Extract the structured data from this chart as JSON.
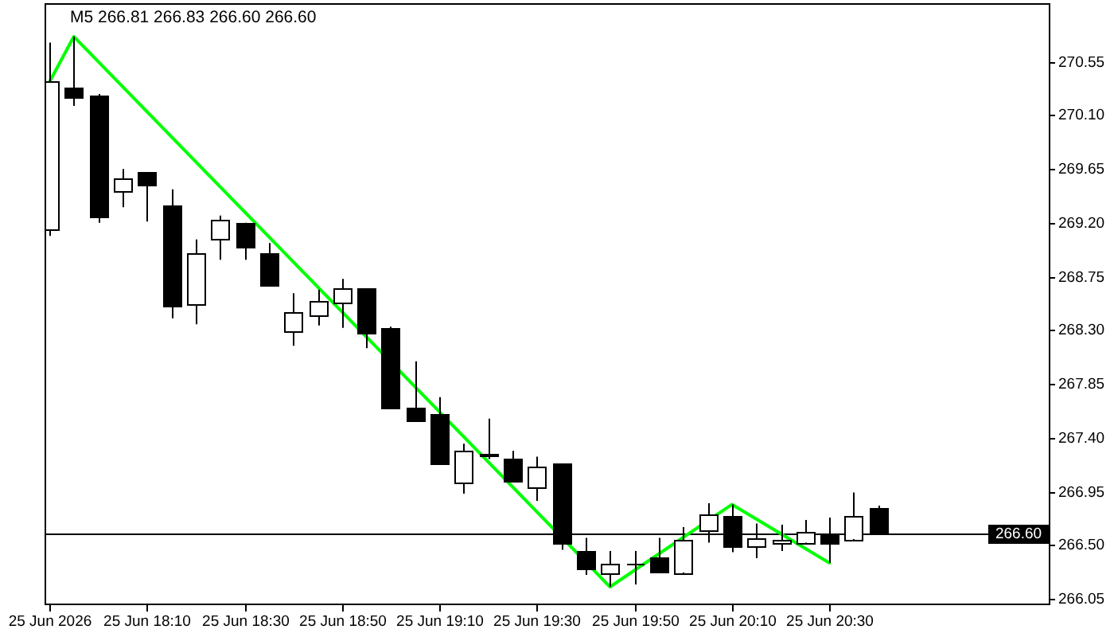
{
  "chart_data": {
    "type": "candlestick",
    "title": "M5 266.81 266.83 266.60 266.60",
    "x": [
      "2026-06-25T17:50",
      "2026-06-25T17:55",
      "2026-06-25T18:00",
      "2026-06-25T18:05",
      "2026-06-25T18:10",
      "2026-06-25T18:15",
      "2026-06-25T18:20",
      "2026-06-25T18:25",
      "2026-06-25T18:30",
      "2026-06-25T18:35",
      "2026-06-25T18:40",
      "2026-06-25T18:45",
      "2026-06-25T18:50",
      "2026-06-25T18:55",
      "2026-06-25T19:00",
      "2026-06-25T19:05",
      "2026-06-25T19:10",
      "2026-06-25T19:15",
      "2026-06-25T19:20",
      "2026-06-25T19:25",
      "2026-06-25T19:30",
      "2026-06-25T19:35",
      "2026-06-25T19:40",
      "2026-06-25T19:45",
      "2026-06-25T19:50",
      "2026-06-25T19:55",
      "2026-06-25T20:00",
      "2026-06-25T20:05",
      "2026-06-25T20:10",
      "2026-06-25T20:15",
      "2026-06-25T20:20",
      "2026-06-25T20:25",
      "2026-06-25T20:30",
      "2026-06-25T20:35",
      "2026-06-25T20:40"
    ],
    "ohlc": [
      [
        269.14,
        270.71,
        269.09,
        270.38
      ],
      [
        270.33,
        270.76,
        270.18,
        270.25
      ],
      [
        270.27,
        270.28,
        269.2,
        269.25
      ],
      [
        269.47,
        269.65,
        269.33,
        269.57
      ],
      [
        269.62,
        269.62,
        269.21,
        269.52
      ],
      [
        269.34,
        269.48,
        268.4,
        268.51
      ],
      [
        268.52,
        269.06,
        268.35,
        268.94
      ],
      [
        269.07,
        269.26,
        268.89,
        269.22
      ],
      [
        269.2,
        269.2,
        268.89,
        269.0
      ],
      [
        268.94,
        269.03,
        268.68,
        268.68
      ],
      [
        268.29,
        268.61,
        268.17,
        268.45
      ],
      [
        268.43,
        268.64,
        268.34,
        268.54
      ],
      [
        268.53,
        268.73,
        268.32,
        268.65
      ],
      [
        268.65,
        268.65,
        268.15,
        268.28
      ],
      [
        268.32,
        268.33,
        267.64,
        267.65
      ],
      [
        267.65,
        268.04,
        267.55,
        267.55
      ],
      [
        267.6,
        267.74,
        267.18,
        267.19
      ],
      [
        267.02,
        267.35,
        266.93,
        267.29
      ],
      [
        267.26,
        267.56,
        267.22,
        267.25
      ],
      [
        267.23,
        267.29,
        267.03,
        267.04
      ],
      [
        266.99,
        267.24,
        266.87,
        267.16
      ],
      [
        267.18,
        267.18,
        266.46,
        266.52
      ],
      [
        266.45,
        266.56,
        266.25,
        266.3
      ],
      [
        266.27,
        266.45,
        266.15,
        266.34
      ],
      [
        266.35,
        266.45,
        266.17,
        266.35
      ],
      [
        266.4,
        266.56,
        266.27,
        266.28
      ],
      [
        266.27,
        266.65,
        266.27,
        266.55
      ],
      [
        266.62,
        266.85,
        266.52,
        266.76
      ],
      [
        266.75,
        266.84,
        266.44,
        266.49
      ],
      [
        266.49,
        266.68,
        266.39,
        266.56
      ],
      [
        266.52,
        266.67,
        266.45,
        266.55
      ],
      [
        266.52,
        266.71,
        266.52,
        266.61
      ],
      [
        266.58,
        266.73,
        266.35,
        266.52
      ],
      [
        266.55,
        266.94,
        266.55,
        266.75
      ],
      [
        266.81,
        266.83,
        266.6,
        266.6
      ]
    ],
    "series": [
      {
        "type": "line",
        "color": "#00ff00",
        "x": [
          "2026-06-25T17:50",
          "2026-06-25T17:55",
          "2026-06-25T19:45",
          "2026-06-25T20:10",
          "2026-06-25T20:30"
        ],
        "values": [
          270.38,
          270.76,
          266.15,
          266.84,
          266.35
        ]
      }
    ],
    "xlim": [
      "2026-06-25T17:49",
      "2026-06-25T21:15"
    ],
    "xticks": [
      {
        "value": "2026-06-25T17:50",
        "label": "25 Jun 2026"
      },
      {
        "value": "2026-06-25T18:10",
        "label": "25 Jun 18:10"
      },
      {
        "value": "2026-06-25T18:30",
        "label": "25 Jun 18:30"
      },
      {
        "value": "2026-06-25T18:50",
        "label": "25 Jun 18:50"
      },
      {
        "value": "2026-06-25T19:10",
        "label": "25 Jun 19:10"
      },
      {
        "value": "2026-06-25T19:30",
        "label": "25 Jun 19:30"
      },
      {
        "value": "2026-06-25T19:50",
        "label": "25 Jun 19:50"
      },
      {
        "value": "2026-06-25T20:10",
        "label": "25 Jun 20:10"
      },
      {
        "value": "2026-06-25T20:30",
        "label": "25 Jun 20:30"
      }
    ],
    "ylim": [
      266.01,
      271.04
    ],
    "yticks": [
      266.05,
      {
        "value": 266.5,
        "label": "266.50"
      },
      266.95,
      {
        "value": 267.4,
        "label": "267.40"
      },
      267.85,
      {
        "value": 268.3,
        "label": "268.30"
      },
      268.75,
      {
        "value": 269.2,
        "label": "269.20"
      },
      269.65,
      {
        "value": 270.1,
        "label": "270.10"
      },
      270.55
    ],
    "ref_lines": [
      {
        "axis": "y",
        "value": 266.6,
        "label": "266.60",
        "color": "#000000"
      }
    ]
  }
}
